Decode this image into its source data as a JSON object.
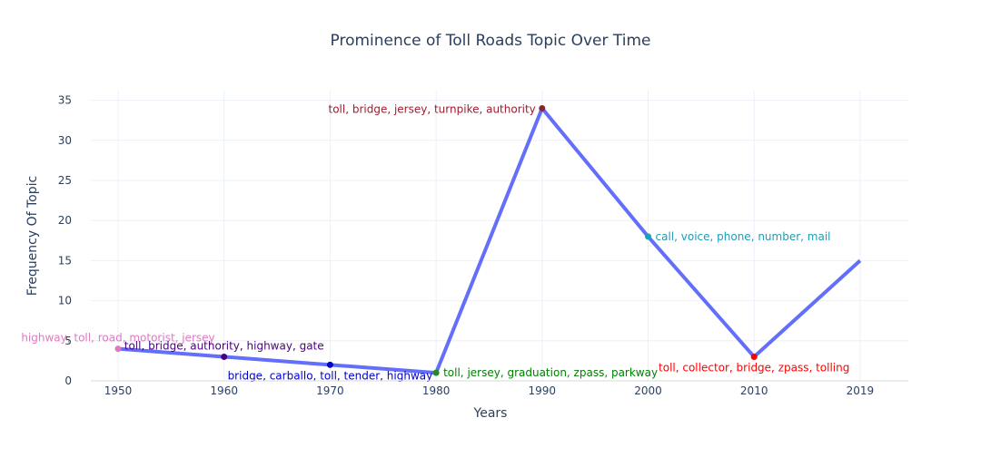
{
  "chart_data": {
    "type": "line",
    "title": "Prominence of Toll Roads Topic Over Time",
    "xlabel": "Years",
    "ylabel": "Frequency Of Topic",
    "x_tick_labels": [
      "1950",
      "1960",
      "1970",
      "1980",
      "1990",
      "2000",
      "2010",
      "2019"
    ],
    "y_ticks": [
      0,
      5,
      10,
      15,
      20,
      25,
      30,
      35
    ],
    "ylim": [
      0,
      36.2
    ],
    "grid": true,
    "line_color": "#636efa",
    "points": [
      {
        "x": "1950",
        "y": 4,
        "label": "highway, toll, road, motorist, jersey",
        "color": "#e377c2",
        "label_color": "#e377c2",
        "label_pos": "top"
      },
      {
        "x": "1960",
        "y": 3,
        "label": "toll, bridge, authority, highway, gate",
        "color": "#4b0082",
        "label_color": "#4b0082",
        "label_pos": "top"
      },
      {
        "x": "1970",
        "y": 2,
        "label": "bridge, carballo, toll, tender, highway",
        "color": "#0000cd",
        "label_color": "#0000cd",
        "label_pos": "bottom"
      },
      {
        "x": "1980",
        "y": 1,
        "label": "toll, jersey, graduation, zpass, parkway",
        "color": "#228b22",
        "label_color": "#008000",
        "label_pos": "right"
      },
      {
        "x": "1990",
        "y": 34,
        "label": "toll, bridge, jersey, turnpike, authority",
        "color": "#8b2232",
        "label_color": "#a01b2e",
        "label_pos": "left"
      },
      {
        "x": "2000",
        "y": 18,
        "label": "call, voice, phone, number, mail",
        "color": "#17a2b8",
        "label_color": "#1f9cb4",
        "label_pos": "right"
      },
      {
        "x": "2010",
        "y": 3,
        "label": "toll, collector, bridge, zpass, tolling",
        "color": "#ff0000",
        "label_color": "#ff0000",
        "label_pos": "bottom"
      },
      {
        "x": "2019",
        "y": 15,
        "label": "",
        "color": "#636efa",
        "label_color": "#636efa",
        "label_pos": "none"
      }
    ]
  }
}
